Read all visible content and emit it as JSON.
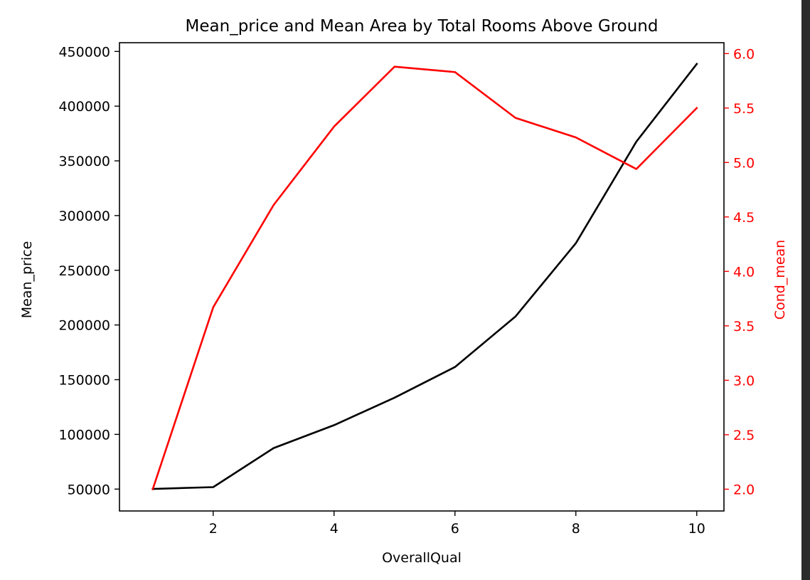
{
  "chart_data": {
    "type": "line",
    "title": "Mean_price and Mean Area by Total Rooms Above Ground",
    "xlabel": "OverallQual",
    "ylabel": "Mean_price",
    "y2label": "Cond_mean",
    "x": [
      1,
      2,
      3,
      4,
      5,
      6,
      7,
      8,
      9,
      10
    ],
    "xlim": [
      0.45,
      10.45
    ],
    "xticks": [
      2,
      4,
      6,
      8,
      10
    ],
    "ylim": [
      30000,
      458000
    ],
    "yticks": [
      50000,
      100000,
      150000,
      200000,
      250000,
      300000,
      350000,
      400000,
      450000
    ],
    "y2lim": [
      1.8,
      6.1
    ],
    "y2ticks": [
      2.0,
      2.5,
      3.0,
      3.5,
      4.0,
      4.5,
      5.0,
      5.5,
      6.0
    ],
    "grid": false,
    "series": [
      {
        "axis": "left",
        "color": "#000000",
        "values": [
          50150,
          51770,
          87473,
          108420,
          133523,
          161603,
          207716,
          274735,
          367513,
          438588
        ]
      },
      {
        "axis": "right",
        "color": "#ff0000",
        "values": [
          2.0,
          3.67,
          4.61,
          5.33,
          5.88,
          5.83,
          5.41,
          5.23,
          4.94,
          5.5
        ]
      }
    ],
    "y2_tick_color": "#ff0000"
  }
}
